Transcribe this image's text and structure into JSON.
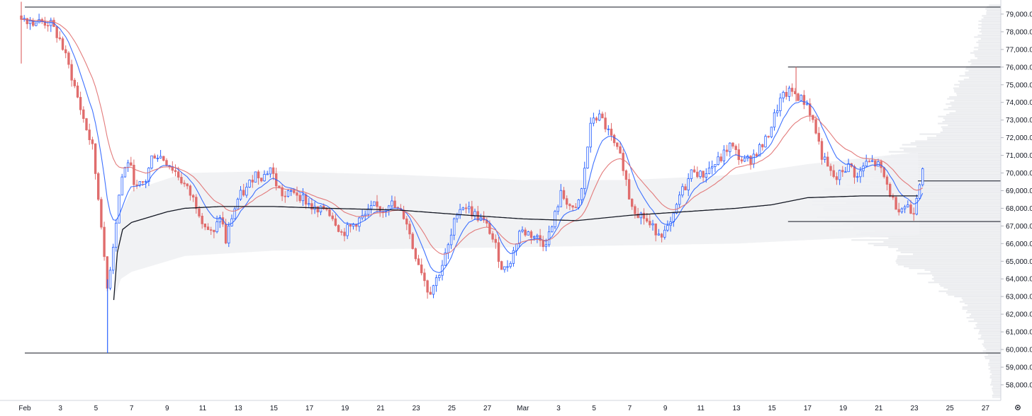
{
  "chart_data": {
    "type": "candlestick",
    "title": "",
    "xlabel": "",
    "ylabel": "",
    "ylim": [
      57200,
      79600
    ],
    "y_ticks": [
      58000,
      59000,
      60000,
      61000,
      62000,
      63000,
      64000,
      65000,
      66000,
      67000,
      68000,
      69000,
      70000,
      71000,
      72000,
      73000,
      74000,
      75000,
      76000,
      77000,
      78000,
      79000
    ],
    "y_tick_labels": [
      "58,000.0",
      "59,000.0",
      "60,000.0",
      "61,000.0",
      "62,000.0",
      "63,000.0",
      "64,000.0",
      "65,000.0",
      "66,000.0",
      "67,000.0",
      "68,000.0",
      "69,000.0",
      "70,000.0",
      "71,000.0",
      "72,000.0",
      "73,000.0",
      "74,000.0",
      "75,000.0",
      "76,000.0",
      "77,000.0",
      "78,000.0",
      "79,000.0"
    ],
    "x_ticks": [
      {
        "day": 1,
        "label": "Feb"
      },
      {
        "day": 3,
        "label": "3"
      },
      {
        "day": 5,
        "label": "5"
      },
      {
        "day": 7,
        "label": "7"
      },
      {
        "day": 9,
        "label": "9"
      },
      {
        "day": 11,
        "label": "11"
      },
      {
        "day": 13,
        "label": "13"
      },
      {
        "day": 15,
        "label": "15"
      },
      {
        "day": 17,
        "label": "17"
      },
      {
        "day": 19,
        "label": "19"
      },
      {
        "day": 21,
        "label": "21"
      },
      {
        "day": 23,
        "label": "23"
      },
      {
        "day": 25,
        "label": "25"
      },
      {
        "day": 27,
        "label": "27"
      },
      {
        "day": 29,
        "label": "Mar"
      },
      {
        "day": 31,
        "label": "3"
      },
      {
        "day": 33,
        "label": "5"
      },
      {
        "day": 35,
        "label": "7"
      },
      {
        "day": 37,
        "label": "9"
      },
      {
        "day": 39,
        "label": "11"
      },
      {
        "day": 41,
        "label": "13"
      },
      {
        "day": 43,
        "label": "15"
      },
      {
        "day": 45,
        "label": "17"
      },
      {
        "day": 47,
        "label": "19"
      },
      {
        "day": 49,
        "label": "21"
      },
      {
        "day": 51,
        "label": "23"
      },
      {
        "day": 53,
        "label": "25"
      },
      {
        "day": 55,
        "label": "27"
      }
    ],
    "x_range": [
      1,
      57
    ],
    "bars_per_day": 6,
    "close_anchors": [
      [
        0.8,
        78900
      ],
      [
        1.4,
        78600
      ],
      [
        2.4,
        78500
      ],
      [
        3.0,
        77500
      ],
      [
        3.6,
        75600
      ],
      [
        4.2,
        73400
      ],
      [
        4.8,
        71400
      ],
      [
        5.3,
        67200
      ],
      [
        5.6,
        63200
      ],
      [
        6.0,
        66200
      ],
      [
        6.4,
        69600
      ],
      [
        6.8,
        70700
      ],
      [
        7.3,
        69100
      ],
      [
        7.8,
        69600
      ],
      [
        8.2,
        71100
      ],
      [
        8.7,
        70900
      ],
      [
        9.1,
        70500
      ],
      [
        9.6,
        69900
      ],
      [
        10.1,
        69100
      ],
      [
        10.6,
        68300
      ],
      [
        11.1,
        67100
      ],
      [
        11.6,
        66400
      ],
      [
        12.0,
        67700
      ],
      [
        12.3,
        66100
      ],
      [
        12.6,
        67400
      ],
      [
        13.0,
        68600
      ],
      [
        13.5,
        69100
      ],
      [
        13.9,
        70000
      ],
      [
        14.4,
        69800
      ],
      [
        14.8,
        70300
      ],
      [
        15.2,
        69200
      ],
      [
        15.6,
        68600
      ],
      [
        16.1,
        69000
      ],
      [
        16.5,
        68700
      ],
      [
        17.0,
        68200
      ],
      [
        17.5,
        67700
      ],
      [
        17.9,
        68100
      ],
      [
        18.4,
        67400
      ],
      [
        18.8,
        66600
      ],
      [
        19.3,
        66900
      ],
      [
        19.7,
        67300
      ],
      [
        20.2,
        67600
      ],
      [
        20.6,
        68100
      ],
      [
        21.1,
        67900
      ],
      [
        21.5,
        68400
      ],
      [
        21.9,
        67900
      ],
      [
        22.4,
        67500
      ],
      [
        22.8,
        65800
      ],
      [
        23.3,
        64500
      ],
      [
        23.7,
        63200
      ],
      [
        24.1,
        63900
      ],
      [
        24.5,
        64900
      ],
      [
        24.9,
        66100
      ],
      [
        25.3,
        67900
      ],
      [
        25.7,
        68200
      ],
      [
        26.1,
        67800
      ],
      [
        26.6,
        67400
      ],
      [
        27.1,
        66800
      ],
      [
        27.5,
        65700
      ],
      [
        27.9,
        64400
      ],
      [
        28.4,
        65300
      ],
      [
        28.8,
        66700
      ],
      [
        29.3,
        66600
      ],
      [
        29.7,
        66400
      ],
      [
        30.2,
        66000
      ],
      [
        30.6,
        66800
      ],
      [
        31.1,
        68800
      ],
      [
        31.5,
        68400
      ],
      [
        31.9,
        67600
      ],
      [
        32.3,
        69000
      ],
      [
        32.6,
        71300
      ],
      [
        32.9,
        73200
      ],
      [
        33.4,
        73100
      ],
      [
        33.8,
        72300
      ],
      [
        34.2,
        71400
      ],
      [
        34.6,
        70600
      ],
      [
        35.0,
        68500
      ],
      [
        35.4,
        67800
      ],
      [
        35.8,
        67500
      ],
      [
        36.2,
        66900
      ],
      [
        36.6,
        66700
      ],
      [
        37.0,
        66600
      ],
      [
        37.4,
        67200
      ],
      [
        37.8,
        68700
      ],
      [
        38.2,
        69400
      ],
      [
        38.6,
        70300
      ],
      [
        39.0,
        69800
      ],
      [
        39.4,
        70200
      ],
      [
        39.8,
        70500
      ],
      [
        40.2,
        70900
      ],
      [
        40.6,
        71600
      ],
      [
        41.0,
        71100
      ],
      [
        41.4,
        70600
      ],
      [
        41.8,
        70800
      ],
      [
        42.2,
        71300
      ],
      [
        42.6,
        71700
      ],
      [
        43.0,
        72800
      ],
      [
        43.4,
        74000
      ],
      [
        43.8,
        74500
      ],
      [
        44.2,
        74600
      ],
      [
        44.6,
        74200
      ],
      [
        45.0,
        73900
      ],
      [
        45.4,
        72600
      ],
      [
        45.8,
        71000
      ],
      [
        46.2,
        70100
      ],
      [
        46.6,
        69600
      ],
      [
        47.0,
        70200
      ],
      [
        47.4,
        70400
      ],
      [
        47.8,
        69700
      ],
      [
        48.2,
        70500
      ],
      [
        48.6,
        70600
      ],
      [
        49.0,
        70400
      ],
      [
        49.4,
        69500
      ],
      [
        49.8,
        68400
      ],
      [
        50.2,
        68000
      ],
      [
        50.6,
        68200
      ],
      [
        50.9,
        67600
      ],
      [
        51.2,
        69100
      ],
      [
        51.5,
        70600
      ]
    ],
    "series": [
      {
        "color": "#2962ff",
        "role": "ema-fast"
      },
      {
        "color": "#e06d6d",
        "role": "ema-slow"
      },
      {
        "color": "#131722",
        "role": "anchored-vwap"
      }
    ],
    "vwap_anchors": [
      [
        6.0,
        62800
      ],
      [
        6.2,
        65500
      ],
      [
        6.5,
        66800
      ],
      [
        7.0,
        67200
      ],
      [
        8.0,
        67500
      ],
      [
        9.0,
        67800
      ],
      [
        10.0,
        68000
      ],
      [
        12.0,
        68100
      ],
      [
        15.0,
        68100
      ],
      [
        18.0,
        68000
      ],
      [
        22.0,
        67900
      ],
      [
        26.0,
        67600
      ],
      [
        29.0,
        67400
      ],
      [
        32.0,
        67300
      ],
      [
        35.0,
        67600
      ],
      [
        38.0,
        67800
      ],
      [
        41.0,
        68000
      ],
      [
        43.0,
        68200
      ],
      [
        45.0,
        68600
      ],
      [
        48.0,
        68700
      ],
      [
        51.3,
        68700
      ]
    ],
    "band_anchors": [
      [
        6.0,
        62800,
        62800
      ],
      [
        6.4,
        64000,
        67800
      ],
      [
        7.0,
        64400,
        69000
      ],
      [
        10.0,
        65300,
        70000
      ],
      [
        15.0,
        65600,
        70100
      ],
      [
        22.0,
        65700,
        69900
      ],
      [
        29.0,
        65800,
        69600
      ],
      [
        35.0,
        65900,
        69600
      ],
      [
        41.0,
        66000,
        69900
      ],
      [
        45.0,
        66200,
        70500
      ],
      [
        51.3,
        66500,
        71200
      ]
    ],
    "volume_profile": [
      [
        57500,
        0.05
      ],
      [
        58500,
        0.06
      ],
      [
        59500,
        0.08
      ],
      [
        60500,
        0.11
      ],
      [
        61500,
        0.16
      ],
      [
        62500,
        0.22
      ],
      [
        63500,
        0.34
      ],
      [
        64500,
        0.48
      ],
      [
        65500,
        0.62
      ],
      [
        66500,
        0.82
      ],
      [
        67500,
        0.95
      ],
      [
        68500,
        1.0
      ],
      [
        69500,
        0.88
      ],
      [
        70500,
        0.8
      ],
      [
        71500,
        0.52
      ],
      [
        72500,
        0.38
      ],
      [
        73500,
        0.3
      ],
      [
        74500,
        0.26
      ],
      [
        75500,
        0.21
      ],
      [
        76500,
        0.16
      ],
      [
        77500,
        0.14
      ],
      [
        78500,
        0.12
      ],
      [
        79300,
        0.08
      ]
    ],
    "horizontal_levels": [
      {
        "price": 79400,
        "from_day": 1.0,
        "to_day": 56.3
      },
      {
        "price": 59800,
        "from_day": 1.0,
        "to_day": 56.3
      },
      {
        "price": 76000,
        "from_day": 43.9,
        "to_day": 56.3
      },
      {
        "price": 69550,
        "from_day": 51.2,
        "to_day": 56.3
      },
      {
        "price": 67250,
        "from_day": 43.9,
        "to_day": 56.3
      }
    ],
    "spikes": [
      {
        "day": 5.65,
        "low": 59800
      },
      {
        "day": 44.35,
        "high": 76000
      },
      {
        "day": 0.8,
        "low": 76200,
        "high": 79700
      }
    ],
    "colors": {
      "up": "#2962ff",
      "down": "#e06d6d",
      "grid": "#ffffff",
      "axis_text": "#131722"
    }
  }
}
